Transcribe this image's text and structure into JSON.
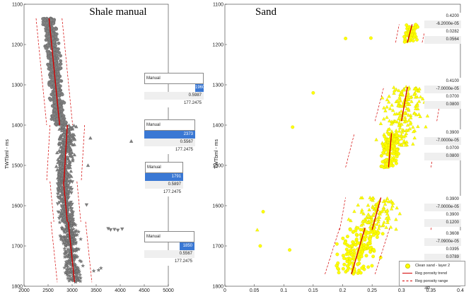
{
  "chart_data": [
    {
      "type": "scatter",
      "title": "Shale manual",
      "xlabel": "",
      "ylabel": "TWTbml - ms",
      "xlim": [
        2000,
        5000
      ],
      "ylim": [
        1100,
        1800
      ],
      "y_reversed": true,
      "xticks": [
        "2000",
        "2500",
        "3000",
        "3500",
        "4000",
        "4500",
        "5000"
      ],
      "yticks": [
        "1100",
        "1200",
        "1300",
        "1400",
        "1500",
        "1600",
        "1700",
        "1800"
      ],
      "marker_color": "#808080",
      "trend_color": "#d40000",
      "segments": [
        {
          "marker": "circle",
          "y_range": [
            1135,
            1400
          ],
          "trend": [
            [
              2520,
              1135
            ],
            [
              2740,
              1400
            ]
          ],
          "range_lower": [
            [
              2250,
              1135
            ],
            [
              2470,
              1400
            ]
          ],
          "range_upper": [
            [
              2790,
              1135
            ],
            [
              3010,
              1400
            ]
          ],
          "center_spread": 120
        },
        {
          "marker": "triangle-up",
          "y_range": [
            1400,
            1540
          ],
          "trend": [
            [
              2900,
              1400
            ],
            [
              2830,
              1540
            ]
          ],
          "range_lower": [
            [
              2540,
              1400
            ],
            [
              2470,
              1540
            ]
          ],
          "range_upper": [
            [
              3260,
              1400
            ],
            [
              3190,
              1540
            ]
          ],
          "center_spread": 150
        },
        {
          "marker": "triangle-down",
          "y_range": [
            1540,
            1640
          ],
          "trend": [
            [
              2820,
              1540
            ],
            [
              2900,
              1640
            ]
          ],
          "range_lower": [
            [
              2540,
              1540
            ],
            [
              2620,
              1640
            ]
          ],
          "range_upper": [
            [
              3100,
              1540
            ],
            [
              3180,
              1640
            ]
          ],
          "center_spread": 160
        },
        {
          "marker": "star",
          "y_range": [
            1640,
            1790
          ],
          "trend": [
            [
              2920,
              1640
            ],
            [
              3050,
              1790
            ]
          ],
          "range_lower": [
            [
              2560,
              1640
            ],
            [
              2690,
              1790
            ]
          ],
          "range_upper": [
            [
              3280,
              1640
            ],
            [
              3410,
              1790
            ]
          ],
          "center_spread": 150
        }
      ],
      "outliers": [
        {
          "marker": "triangle-up",
          "x": 3380,
          "y": 1432
        },
        {
          "marker": "triangle-up",
          "x": 4230,
          "y": 1440
        },
        {
          "marker": "triangle-up",
          "x": 3330,
          "y": 1500
        },
        {
          "marker": "triangle-down",
          "x": 3750,
          "y": 1657
        },
        {
          "marker": "triangle-down",
          "x": 3800,
          "y": 1660
        },
        {
          "marker": "triangle-down",
          "x": 3880,
          "y": 1659
        },
        {
          "marker": "triangle-down",
          "x": 3950,
          "y": 1661
        },
        {
          "marker": "triangle-down",
          "x": 4040,
          "y": 1658
        },
        {
          "marker": "triangle-down",
          "x": 3300,
          "y": 1598
        },
        {
          "marker": "star",
          "x": 3550,
          "y": 1760
        },
        {
          "marker": "star",
          "x": 3600,
          "y": 1755
        },
        {
          "marker": "star",
          "x": 3450,
          "y": 1762
        }
      ],
      "parameter_boxes": [
        {
          "header": "Manual",
          "values": [
            "1960",
            "0.5987",
            "177.2475"
          ]
        },
        {
          "header": "Manual",
          "values": [
            "2373",
            "0.5567",
            "177.2475"
          ]
        },
        {
          "header": "Manual",
          "values": [
            "1791",
            "0.5897",
            "177.2475"
          ]
        },
        {
          "header": "Manual",
          "values": [
            "1850",
            "0.5567",
            "177.2475"
          ]
        }
      ]
    },
    {
      "type": "scatter",
      "title": "Sand",
      "xlabel": "",
      "ylabel": "TWTbml - ms",
      "xlim": [
        0,
        0.4
      ],
      "ylim": [
        1100,
        1800
      ],
      "y_reversed": true,
      "xticks": [
        "0",
        "0.05",
        "0.1",
        "0.15",
        "0.2",
        "0.25",
        "0.3",
        "0.35",
        "0.4"
      ],
      "yticks": [
        "1100",
        "1200",
        "1300",
        "1400",
        "1500",
        "1600",
        "1700",
        "1800"
      ],
      "marker_color": "#ffff00",
      "trend_color": "#d40000",
      "segments": [
        {
          "marker": "circle",
          "y_range": [
            1150,
            1195
          ],
          "trend": [
            [
              0.31,
              1195
            ],
            [
              0.318,
              1150
            ]
          ],
          "range_lower": [
            [
              0.29,
              1195
            ],
            [
              0.296,
              1150
            ]
          ],
          "range_upper": [
            [
              0.335,
              1195
            ],
            [
              0.342,
              1150
            ]
          ],
          "center_spread": 0.012
        },
        {
          "marker": "triangle-up",
          "y_range": [
            1305,
            1450
          ],
          "trend": [
            [
              0.3,
              1390
            ],
            [
              0.31,
              1305
            ]
          ],
          "range_lower": [
            [
              0.255,
              1390
            ],
            [
              0.27,
              1305
            ]
          ],
          "range_upper": [
            [
              0.36,
              1390
            ],
            [
              0.37,
              1305
            ]
          ],
          "center_spread": 0.03
        },
        {
          "marker": "circle",
          "y_range": [
            1420,
            1505
          ],
          "trend": [
            [
              0.278,
              1505
            ],
            [
              0.283,
              1420
            ]
          ],
          "range_lower": [
            [
              0.205,
              1505
            ],
            [
              0.22,
              1420
            ]
          ],
          "range_upper": [
            [
              0.35,
              1505
            ],
            [
              0.36,
              1420
            ]
          ],
          "center_spread": 0.015
        },
        {
          "marker": "triangle-up",
          "y_range": [
            1580,
            1660
          ],
          "trend": [
            [
              0.25,
              1660
            ],
            [
              0.265,
              1580
            ]
          ],
          "range_lower": [
            [
              0.195,
              1660
            ],
            [
              0.205,
              1580
            ]
          ],
          "range_upper": [
            [
              0.35,
              1660
            ],
            [
              0.36,
              1580
            ]
          ],
          "center_spread": 0.035
        },
        {
          "marker": "circle",
          "y_range": [
            1655,
            1770
          ],
          "trend": [
            [
              0.215,
              1770
            ],
            [
              0.238,
              1655
            ]
          ],
          "range_lower": [
            [
              0.17,
              1770
            ],
            [
              0.195,
              1655
            ]
          ],
          "range_upper": [
            [
              0.255,
              1770
            ],
            [
              0.28,
              1655
            ]
          ],
          "center_spread": 0.03
        }
      ],
      "outliers": [
        {
          "marker": "circle",
          "x": 0.205,
          "y": 1185
        },
        {
          "marker": "circle",
          "x": 0.248,
          "y": 1184
        },
        {
          "marker": "circle",
          "x": 0.15,
          "y": 1320
        },
        {
          "marker": "circle",
          "x": 0.115,
          "y": 1405
        },
        {
          "marker": "circle",
          "x": 0.06,
          "y": 1700
        },
        {
          "marker": "circle",
          "x": 0.11,
          "y": 1710
        },
        {
          "marker": "circle",
          "x": 0.065,
          "y": 1615
        },
        {
          "marker": "triangle-up",
          "x": 0.055,
          "y": 1660
        }
      ],
      "parameter_boxes": [
        {
          "values": [
            "0.4200",
            "-6.2000e-05",
            "0.0282",
            "0.0564"
          ]
        },
        {
          "values": [
            "0.4100",
            "-7.0000e-05",
            "0.0700",
            "0.0800"
          ]
        },
        {
          "values": [
            "0.3900",
            "-7.0000e-05",
            "0.0700",
            "0.0800"
          ]
        },
        {
          "values": [
            "0.3900",
            "-7.0000e-05",
            "0.3900",
            "0.1200"
          ]
        },
        {
          "values": [
            "0.3608",
            "-7.0900e-05",
            "0.0395",
            "0.0789"
          ]
        }
      ],
      "legend": {
        "position": "bottom-right",
        "entries": [
          "Clean sand - layer 2",
          "Reg porosity trend",
          "Reg porosity range"
        ]
      },
      "corner_label": "3d"
    }
  ]
}
